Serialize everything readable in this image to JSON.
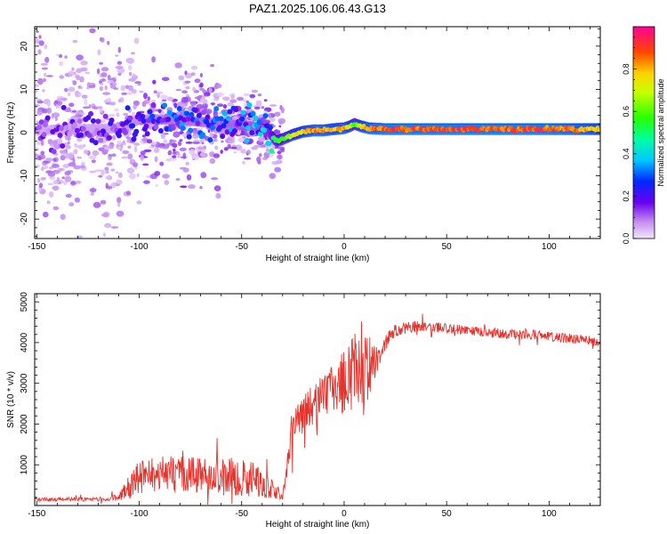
{
  "chart_data": [
    {
      "type": "heatmap",
      "title": "PAZ1.2025.106.06.43.G13",
      "xlabel": "Height of straight line (km)",
      "ylabel": "Frequency (Hz)",
      "xlim": [
        -151,
        125
      ],
      "ylim": [
        -24.5,
        24.5
      ],
      "xticks": [
        -150,
        -100,
        -50,
        0,
        50,
        100
      ],
      "yticks": [
        -20,
        -10,
        0,
        10,
        20
      ],
      "grid": false,
      "colorbar": {
        "label": "Normalized spectral amplitude",
        "range": [
          0,
          1
        ],
        "ticks": [
          "0.0",
          "0.2",
          "0.4",
          "0.6",
          "0.8"
        ],
        "colormap": "rainbow (magenta-blue-cyan-green-yellow-red)"
      },
      "signal_track": {
        "x": [
          -150,
          -110,
          -100,
          -80,
          -60,
          -45,
          -38,
          -33,
          -30,
          -25,
          -20,
          -15,
          -10,
          -5,
          0,
          3,
          5,
          8,
          12,
          20,
          40,
          60,
          80,
          100,
          115,
          125
        ],
        "frequency_hz": [
          0.5,
          1.0,
          3.0,
          3.0,
          2.0,
          1.5,
          0.5,
          -2.0,
          -1.5,
          -0.5,
          0.2,
          0.5,
          0.5,
          0.8,
          1.0,
          1.5,
          2.0,
          1.5,
          1.0,
          0.8,
          0.8,
          0.8,
          0.8,
          0.8,
          0.8,
          0.8
        ],
        "amplitude": [
          0.15,
          0.2,
          0.25,
          0.3,
          0.3,
          0.35,
          0.4,
          0.55,
          0.6,
          0.7,
          0.8,
          0.85,
          0.85,
          0.8,
          0.85,
          0.75,
          0.5,
          0.8,
          0.85,
          0.9,
          0.9,
          0.9,
          0.9,
          0.9,
          0.85,
          0.8
        ]
      }
    },
    {
      "type": "line",
      "xlabel": "Height of straight line (km)",
      "ylabel": "SNR (10 * v/v)",
      "xlim": [
        -151,
        125
      ],
      "ylim": [
        0,
        5200
      ],
      "xticks": [
        -150,
        -100,
        -50,
        0,
        50,
        100
      ],
      "yticks": [
        1000,
        2000,
        3000,
        4000,
        5000
      ],
      "grid": false,
      "color": "#e8322c",
      "x": [
        -150,
        -140,
        -130,
        -120,
        -110,
        -105,
        -100,
        -90,
        -80,
        -70,
        -60,
        -50,
        -45,
        -40,
        -35,
        -30,
        -28,
        -25,
        -20,
        -15,
        -10,
        -5,
        0,
        5,
        8,
        10,
        12,
        15,
        20,
        25,
        30,
        35,
        40,
        50,
        60,
        70,
        80,
        90,
        95,
        100,
        110,
        120,
        125
      ],
      "y": [
        150,
        150,
        150,
        150,
        200,
        450,
        700,
        800,
        750,
        750,
        700,
        700,
        650,
        550,
        400,
        250,
        900,
        1900,
        2200,
        2500,
        2700,
        2900,
        3000,
        3200,
        3400,
        3300,
        3300,
        3500,
        4000,
        4300,
        4350,
        4400,
        4400,
        4350,
        4300,
        4250,
        4200,
        4200,
        4200,
        4150,
        4100,
        4050,
        4000
      ],
      "noise_band": [
        50,
        50,
        50,
        50,
        80,
        300,
        400,
        450,
        450,
        450,
        450,
        500,
        450,
        350,
        250,
        100,
        300,
        400,
        500,
        500,
        500,
        600,
        800,
        1000,
        1200,
        1200,
        900,
        400,
        200,
        150,
        150,
        150,
        120,
        120,
        120,
        120,
        120,
        120,
        120,
        120,
        120,
        120,
        120
      ]
    }
  ]
}
